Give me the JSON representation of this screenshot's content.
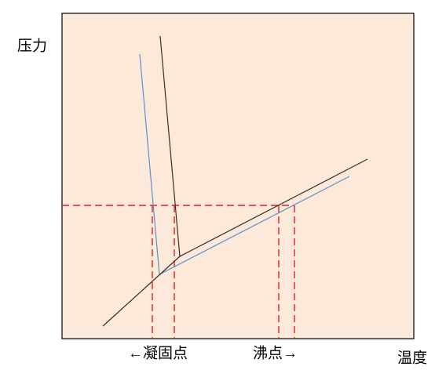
{
  "axes": {
    "y_label": "压力",
    "x_label": "温度"
  },
  "annotations": {
    "freezing_point": "←凝固点",
    "boiling_point": "沸点→"
  }
}
